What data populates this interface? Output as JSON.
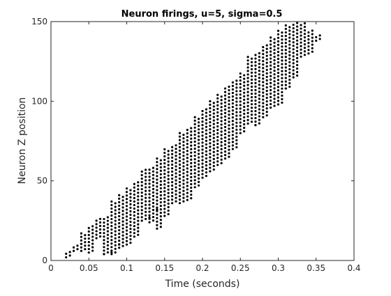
{
  "chart_data": {
    "type": "scatter",
    "title": "Neuron firings, u=5, sigma=0.5",
    "xlabel": "Time (seconds)",
    "ylabel": "Neuron Z position",
    "xlim": [
      0,
      0.4
    ],
    "ylim": [
      0,
      150
    ],
    "x_ticks": [
      "0",
      "0.05",
      "0.1",
      "0.15",
      "0.2",
      "0.25",
      "0.3",
      "0.35",
      "0.4"
    ],
    "y_ticks": [
      "0",
      "50",
      "100",
      "150"
    ],
    "grid": false,
    "marker_color": "#000000",
    "column_times": [
      0.02,
      0.03,
      0.04,
      0.05,
      0.06,
      0.07,
      0.08,
      0.09,
      0.1,
      0.11,
      0.12,
      0.13,
      0.14,
      0.15,
      0.16,
      0.17,
      0.18,
      0.19,
      0.2,
      0.21,
      0.22,
      0.23,
      0.24,
      0.25,
      0.26,
      0.27,
      0.28,
      0.29,
      0.3,
      0.31,
      0.32,
      0.33,
      0.34,
      0.35
    ],
    "column_y_low": [
      2,
      6,
      6,
      5,
      14,
      4,
      4,
      8,
      10,
      15,
      25,
      24,
      20,
      28,
      36,
      36,
      38,
      46,
      52,
      56,
      60,
      64,
      70,
      80,
      86,
      85,
      90,
      96,
      98,
      108,
      115,
      128,
      130,
      138
    ],
    "column_y_high": [
      6,
      10,
      17,
      22,
      27,
      28,
      38,
      41,
      46,
      50,
      57,
      59,
      65,
      70,
      73,
      81,
      84,
      90,
      95,
      100,
      104,
      110,
      113,
      118,
      128,
      131,
      136,
      141,
      145,
      148,
      150,
      149,
      145,
      142
    ],
    "extra_points": [
      {
        "x": 0.07,
        "y": 4
      },
      {
        "x": 0.08,
        "y": 5
      },
      {
        "x": 0.09,
        "y": 10
      },
      {
        "x": 0.13,
        "y": 27
      },
      {
        "x": 0.14,
        "y": 32
      },
      {
        "x": 0.27,
        "y": 85
      },
      {
        "x": 0.31,
        "y": 108
      },
      {
        "x": 0.32,
        "y": 117
      }
    ]
  }
}
